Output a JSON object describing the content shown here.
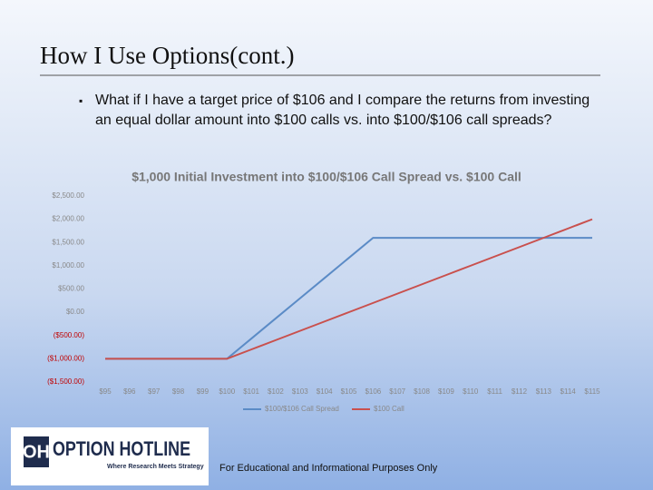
{
  "slide_title": "How I Use Options(cont.)",
  "bullet": "What if I have a target price of $106 and I compare the returns from investing an equal dollar amount into $100 calls vs. into $100/$106 call spreads?",
  "footer": "For Educational and Informational Purposes Only",
  "logo": {
    "mark": "OH",
    "name": "OPTION HOTLINE",
    "tagline": "Where Research Meets Strategy"
  },
  "chart_data": {
    "type": "line",
    "title": "$1,000 Initial Investment into $100/$106 Call Spread vs. $100 Call",
    "categories": [
      "$95",
      "$96",
      "$97",
      "$98",
      "$99",
      "$100",
      "$101",
      "$102",
      "$103",
      "$104",
      "$105",
      "$106",
      "$107",
      "$108",
      "$109",
      "$110",
      "$111",
      "$112",
      "$113",
      "$114",
      "$115"
    ],
    "series": [
      {
        "name": "$100/$106 Call Spread",
        "color": "#5b8bc6",
        "values": [
          -1000,
          -1000,
          -1000,
          -1000,
          -1000,
          -1000,
          -567,
          -133,
          300,
          733,
          1167,
          1600,
          1600,
          1600,
          1600,
          1600,
          1600,
          1600,
          1600,
          1600,
          1600
        ]
      },
      {
        "name": "$100 Call",
        "color": "#c9504d",
        "values": [
          -1000,
          -1000,
          -1000,
          -1000,
          -1000,
          -1000,
          -800,
          -600,
          -400,
          -200,
          0,
          200,
          400,
          600,
          800,
          1000,
          1200,
          1400,
          1600,
          1800,
          2000
        ]
      }
    ],
    "ylim": [
      -1500,
      2500
    ],
    "yticks": [
      {
        "value": 2500,
        "label": "$2,500.00"
      },
      {
        "value": 2000,
        "label": "$2,000.00"
      },
      {
        "value": 1500,
        "label": "$1,500.00"
      },
      {
        "value": 1000,
        "label": "$1,000.00"
      },
      {
        "value": 500,
        "label": "$500.00"
      },
      {
        "value": 0,
        "label": "$0.00"
      },
      {
        "value": -500,
        "label": "($500.00)"
      },
      {
        "value": -1000,
        "label": "($1,000.00)"
      },
      {
        "value": -1500,
        "label": "($1,500.00)"
      }
    ],
    "legend": "bottom"
  }
}
